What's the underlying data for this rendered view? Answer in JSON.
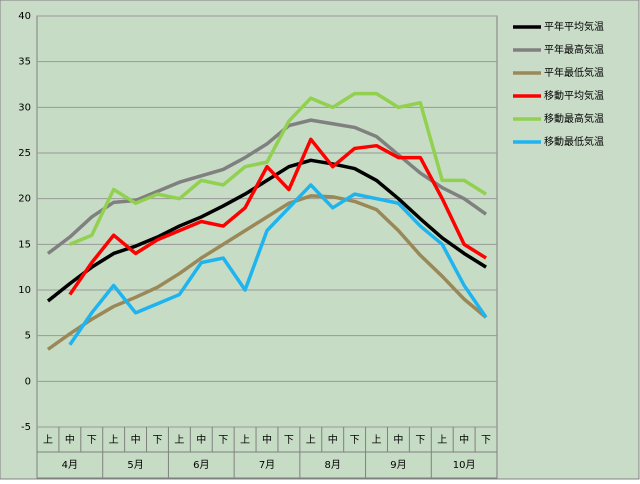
{
  "chart_data": {
    "type": "line",
    "categories": [
      "上",
      "中",
      "下",
      "上",
      "中",
      "下",
      "上",
      "中",
      "下",
      "上",
      "中",
      "下",
      "上",
      "中",
      "下",
      "上",
      "中",
      "下",
      "上",
      "中",
      "下"
    ],
    "months": [
      "4月",
      "5月",
      "6月",
      "7月",
      "8月",
      "9月",
      "10月"
    ],
    "ylim": [
      -5,
      40
    ],
    "yticks": [
      -5,
      0,
      5,
      10,
      15,
      20,
      25,
      30,
      35,
      40
    ],
    "grid": true,
    "series": [
      {
        "name": "平年平均気温",
        "color": "#000000",
        "values": [
          8.8,
          10.7,
          12.5,
          14,
          14.8,
          15.8,
          17,
          18,
          19.2,
          20.5,
          22,
          23.5,
          24.2,
          23.8,
          23.3,
          22,
          20,
          17.8,
          15.7,
          14,
          12.5
        ]
      },
      {
        "name": "平年最高気温",
        "color": "#808080",
        "values": [
          14,
          15.8,
          18,
          19.6,
          19.8,
          20.8,
          21.8,
          22.5,
          23.2,
          24.5,
          26,
          28,
          28.6,
          28.2,
          27.8,
          26.8,
          24.8,
          22.8,
          21.2,
          20,
          18.3
        ]
      },
      {
        "name": "平年最低気温",
        "color": "#9a8858",
        "values": [
          3.5,
          5.2,
          6.8,
          8.2,
          9.2,
          10.3,
          11.8,
          13.5,
          15,
          16.5,
          18,
          19.5,
          20.3,
          20.2,
          19.7,
          18.8,
          16.5,
          13.8,
          11.5,
          9,
          7
        ]
      },
      {
        "name": "移動平均気温",
        "color": "#ff0000",
        "values": [
          null,
          9.5,
          13,
          16,
          14,
          15.5,
          16.5,
          17.5,
          17,
          19,
          23.5,
          21,
          26.5,
          23.5,
          25.5,
          25.8,
          24.5,
          24.5,
          20,
          15,
          13.5
        ]
      },
      {
        "name": "移動最高気温",
        "color": "#92d050",
        "values": [
          null,
          15,
          16,
          21,
          19.5,
          20.5,
          20,
          22,
          21.5,
          23.5,
          24,
          28.5,
          31,
          30,
          31.5,
          31.5,
          30,
          30.5,
          22,
          22,
          20.5
        ]
      },
      {
        "name": "移動最低気温",
        "color": "#1eb4f0",
        "values": [
          null,
          4,
          7.5,
          10.5,
          7.5,
          8.5,
          9.5,
          13,
          13.5,
          10,
          16.5,
          19,
          21.5,
          19,
          20.5,
          20,
          19.5,
          17,
          15,
          10.5,
          7
        ]
      }
    ]
  }
}
